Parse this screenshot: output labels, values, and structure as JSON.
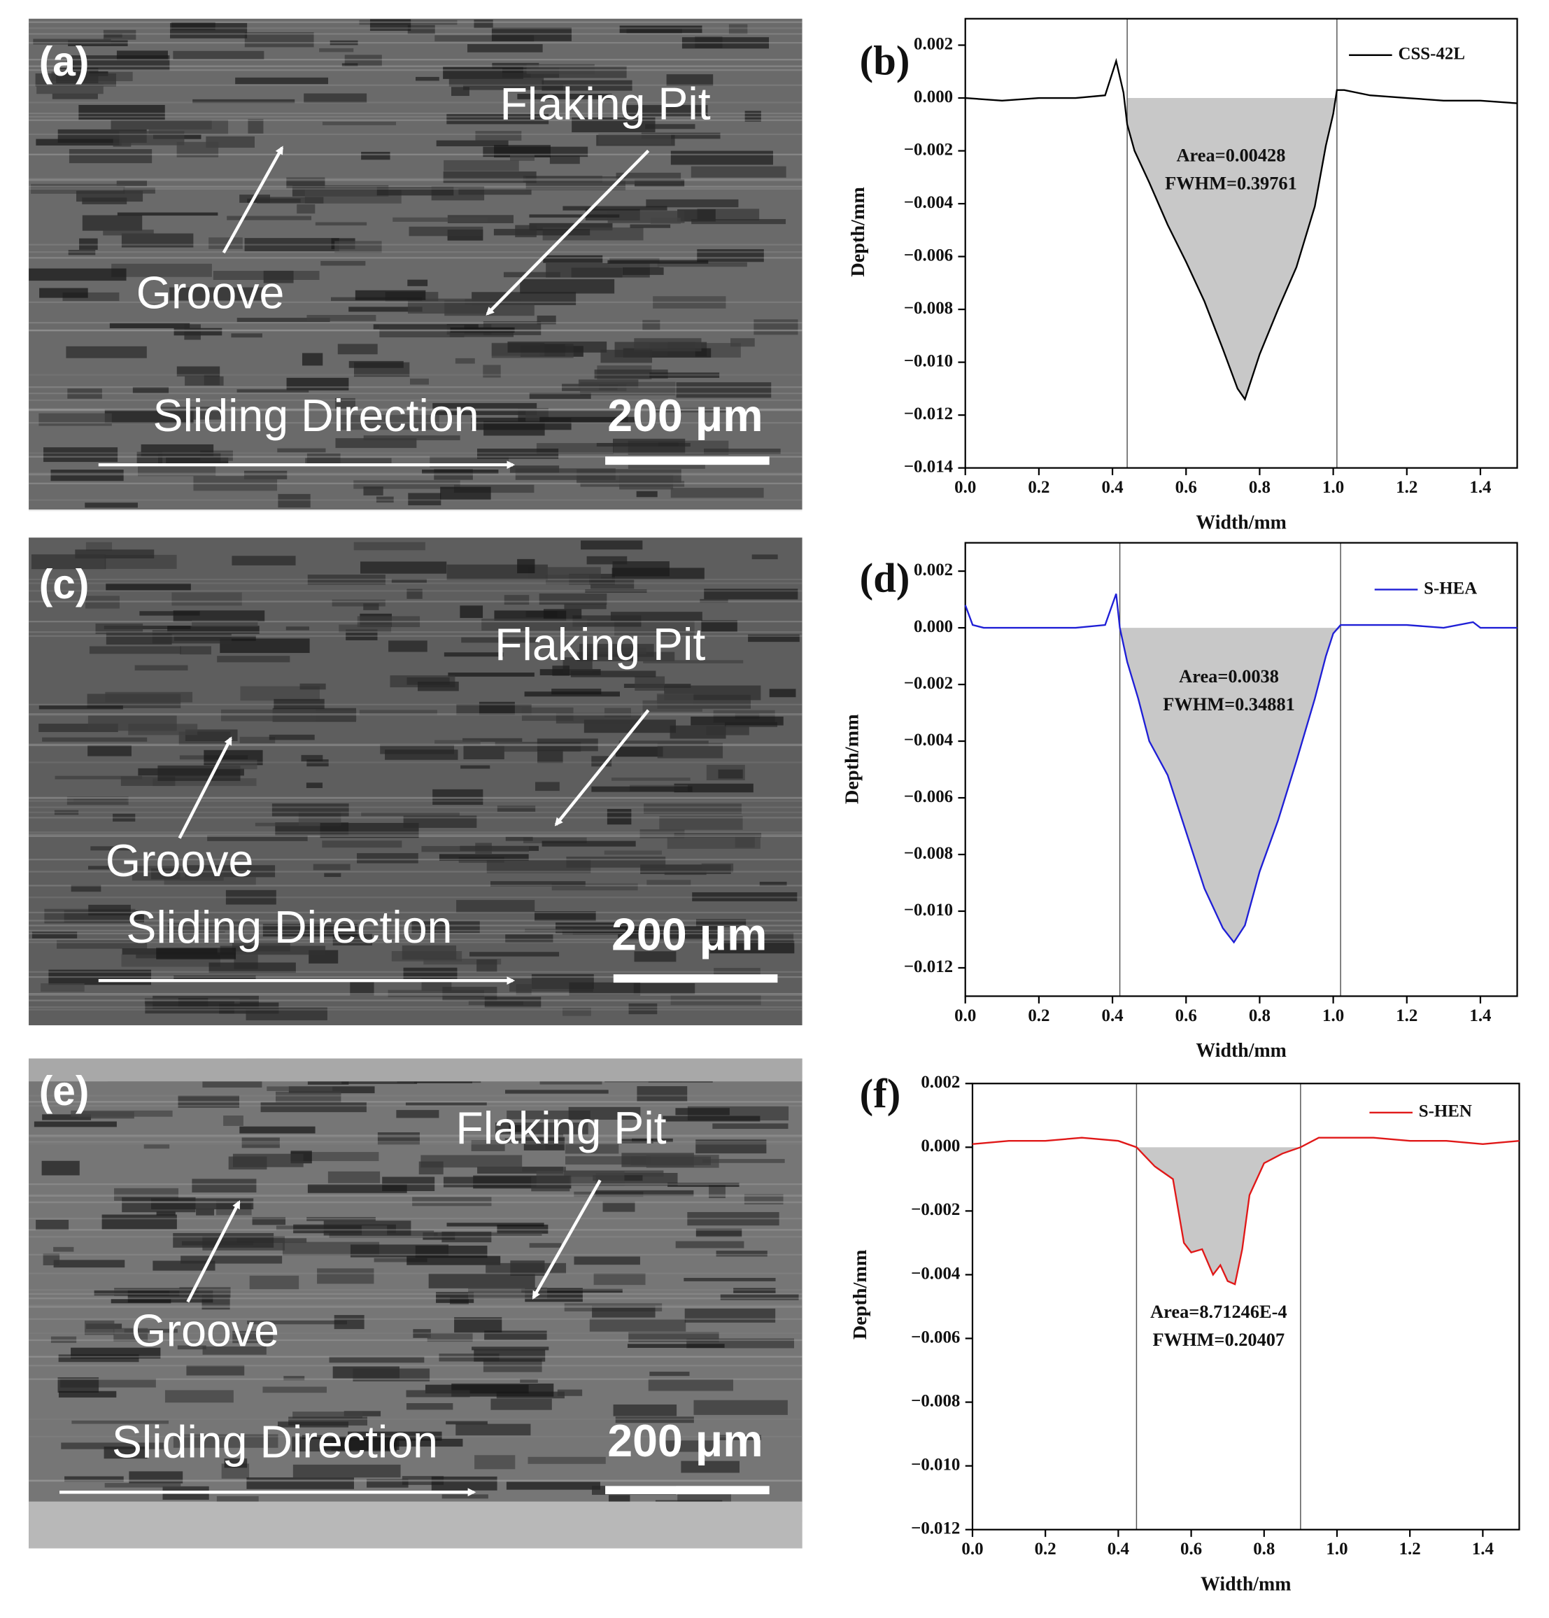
{
  "panels": [
    {
      "label": "(a)",
      "flaking": "Flaking Pit",
      "groove": "Groove",
      "sliding": "Sliding Direction",
      "scale_bar": "200 μm"
    },
    {
      "label": "(c)",
      "flaking": "Flaking Pit",
      "groove": "Groove",
      "sliding": "Sliding Direction",
      "scale_bar": "200 μm"
    },
    {
      "label": "(e)",
      "flaking": "Flaking Pit",
      "groove": "Groove",
      "sliding": "Sliding Direction",
      "scale_bar": "200 μm"
    }
  ],
  "chart_data": [
    {
      "type": "line",
      "panel_label": "(b)",
      "x_label": "Width/mm",
      "y_label": "Depth/mm",
      "xlim": [
        0,
        1.5
      ],
      "ylim": [
        -0.014,
        0.003
      ],
      "xticks": [
        {
          "value": 0,
          "label": "0.0"
        },
        0.2,
        0.4,
        0.6,
        0.8,
        {
          "value": 1,
          "label": "1.0"
        },
        1.2,
        1.4
      ],
      "yticks": [
        0.002,
        {
          "value": 0,
          "label": "0.000"
        },
        {
          "value": -0.002,
          "label": "−0.002"
        },
        {
          "value": -0.004,
          "label": "−0.004"
        },
        {
          "value": -0.006,
          "label": "−0.006"
        },
        {
          "value": -0.008,
          "label": "−0.008"
        },
        {
          "value": -0.01,
          "label": "−0.010"
        },
        {
          "value": -0.012,
          "label": "−0.012"
        },
        {
          "value": -0.014,
          "label": "−0.014"
        }
      ],
      "vlines": [
        0.44,
        1.01
      ],
      "annotations": [
        "Area=0.00428",
        "FWHM=0.39761"
      ],
      "x": [
        0,
        0.1,
        0.2,
        0.3,
        0.38,
        0.41,
        0.43,
        0.44,
        0.46,
        0.5,
        0.55,
        0.6,
        0.65,
        0.7,
        0.74,
        0.76,
        0.8,
        0.85,
        0.9,
        0.95,
        0.98,
        1.0,
        1.01,
        1.03,
        1.1,
        1.2,
        1.3,
        1.4,
        1.5
      ],
      "series": [
        {
          "name": "CSS-42L",
          "color": "#000000",
          "values": [
            0.0,
            -0.0001,
            0.0,
            0.0,
            0.0001,
            0.0014,
            0.0002,
            -0.001,
            -0.002,
            -0.0032,
            -0.0048,
            -0.0062,
            -0.0077,
            -0.0095,
            -0.011,
            -0.0114,
            -0.0097,
            -0.008,
            -0.0064,
            -0.0041,
            -0.0018,
            -0.0006,
            0.0003,
            0.0003,
            0.0001,
            0.0,
            -0.0001,
            -0.0001,
            -0.0002
          ]
        }
      ]
    },
    {
      "type": "line",
      "panel_label": "(d)",
      "x_label": "Width/mm",
      "y_label": "Depth/mm",
      "xlim": [
        0,
        1.5
      ],
      "ylim": [
        -0.013,
        0.003
      ],
      "xticks": [
        {
          "value": 0,
          "label": "0.0"
        },
        0.2,
        0.4,
        0.6,
        0.8,
        {
          "value": 1,
          "label": "1.0"
        },
        1.2,
        1.4
      ],
      "yticks": [
        0.002,
        {
          "value": 0,
          "label": "0.000"
        },
        {
          "value": -0.002,
          "label": "−0.002"
        },
        {
          "value": -0.004,
          "label": "−0.004"
        },
        {
          "value": -0.006,
          "label": "−0.006"
        },
        {
          "value": -0.008,
          "label": "−0.008"
        },
        {
          "value": -0.01,
          "label": "−0.010"
        },
        {
          "value": -0.012,
          "label": "−0.012"
        }
      ],
      "vlines": [
        0.42,
        1.02
      ],
      "annotations": [
        "Area=0.0038",
        "FWHM=0.34881"
      ],
      "x": [
        0,
        0.02,
        0.05,
        0.1,
        0.2,
        0.3,
        0.38,
        0.41,
        0.42,
        0.44,
        0.47,
        0.5,
        0.55,
        0.6,
        0.65,
        0.7,
        0.73,
        0.76,
        0.8,
        0.85,
        0.9,
        0.95,
        0.98,
        1.0,
        1.02,
        1.1,
        1.2,
        1.3,
        1.38,
        1.4,
        1.5
      ],
      "series": [
        {
          "name": "S-HEA",
          "color": "#1f1fd6",
          "values": [
            0.0008,
            0.0001,
            0.0,
            0.0,
            0.0,
            0.0,
            0.0001,
            0.0012,
            0.0,
            -0.0012,
            -0.0025,
            -0.004,
            -0.0052,
            -0.0072,
            -0.0092,
            -0.0106,
            -0.0111,
            -0.0105,
            -0.0086,
            -0.0068,
            -0.0047,
            -0.0025,
            -0.001,
            -0.0002,
            0.0001,
            0.0001,
            0.0001,
            0.0,
            0.0002,
            0.0,
            0.0
          ]
        }
      ]
    },
    {
      "type": "line",
      "panel_label": "(f)",
      "x_label": "Width/mm",
      "y_label": "Depth/mm",
      "xlim": [
        0,
        1.5
      ],
      "ylim": [
        -0.012,
        0.002
      ],
      "xticks": [
        {
          "value": 0,
          "label": "0.0"
        },
        0.2,
        0.4,
        0.6,
        0.8,
        {
          "value": 1,
          "label": "1.0"
        },
        1.2,
        1.4
      ],
      "yticks": [
        0.002,
        {
          "value": 0,
          "label": "0.000"
        },
        {
          "value": -0.002,
          "label": "−0.002"
        },
        {
          "value": -0.004,
          "label": "−0.004"
        },
        {
          "value": -0.006,
          "label": "−0.006"
        },
        {
          "value": -0.008,
          "label": "−0.008"
        },
        {
          "value": -0.01,
          "label": "−0.010"
        },
        {
          "value": -0.012,
          "label": "−0.012"
        }
      ],
      "vlines": [
        0.45,
        0.9
      ],
      "annotations": [
        "Area=8.71246E-4",
        "FWHM=0.20407"
      ],
      "x": [
        0,
        0.1,
        0.2,
        0.3,
        0.4,
        0.45,
        0.5,
        0.55,
        0.58,
        0.6,
        0.63,
        0.66,
        0.68,
        0.7,
        0.72,
        0.74,
        0.76,
        0.8,
        0.85,
        0.9,
        0.95,
        1.0,
        1.1,
        1.2,
        1.3,
        1.4,
        1.5
      ],
      "series": [
        {
          "name": "S-HEN",
          "color": "#e01818",
          "values": [
            0.0001,
            0.0002,
            0.0002,
            0.0003,
            0.0002,
            0.0,
            -0.0006,
            -0.001,
            -0.003,
            -0.0033,
            -0.0032,
            -0.004,
            -0.0037,
            -0.0042,
            -0.0043,
            -0.0032,
            -0.0015,
            -0.0005,
            -0.0002,
            0.0,
            0.0003,
            0.0003,
            0.0003,
            0.0002,
            0.0002,
            0.0001,
            0.0002
          ]
        }
      ]
    }
  ]
}
